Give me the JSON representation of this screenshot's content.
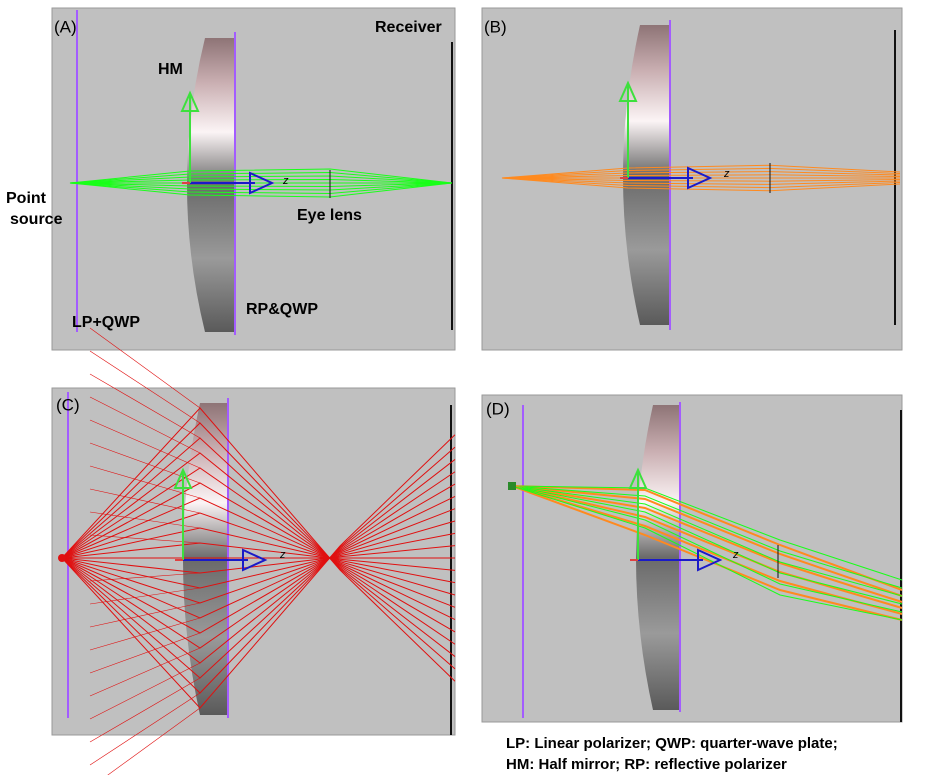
{
  "panels": [
    {
      "label": "(A)",
      "axis_label": "z",
      "annotations": [
        "Receiver",
        "HM",
        "Point",
        "source",
        "Eye lens",
        "LP+QWP",
        "RP&QWP"
      ]
    },
    {
      "label": "(B)",
      "axis_label": "z"
    },
    {
      "label": "(C)",
      "axis_label": "z"
    },
    {
      "label": "(D)",
      "axis_label": "z"
    }
  ],
  "footnote": [
    "LP: Linear polarizer; QWP: quarter-wave plate;",
    "HM: Half mirror; RP: reflective polarizer"
  ]
}
